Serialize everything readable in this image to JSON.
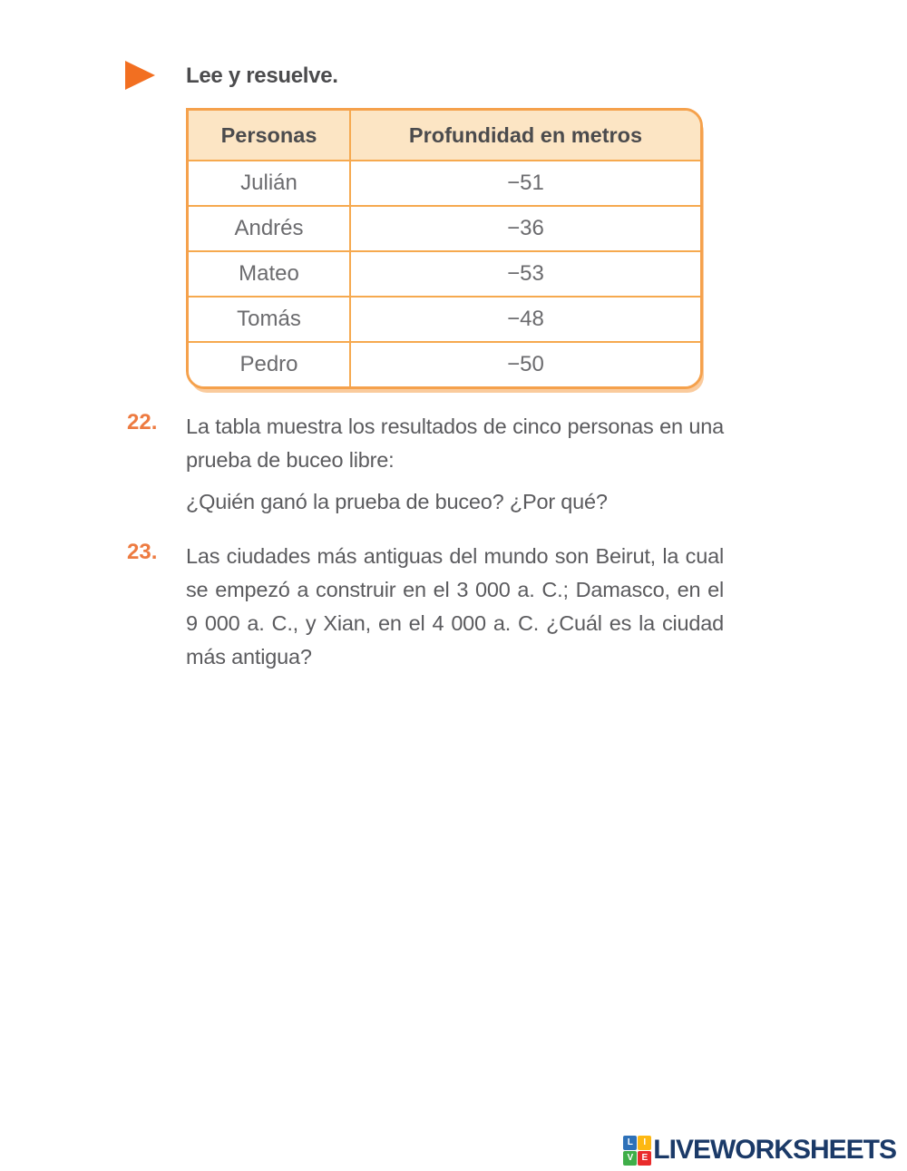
{
  "page": {
    "instruction": "Lee y resuelve."
  },
  "table": {
    "headers": [
      "Personas",
      "Profundidad en metros"
    ],
    "rows": [
      {
        "name": "Julián",
        "value": "−51"
      },
      {
        "name": "Andrés",
        "value": "−36"
      },
      {
        "name": "Mateo",
        "value": "−53"
      },
      {
        "name": "Tomás",
        "value": "−48"
      },
      {
        "name": "Pedro",
        "value": "−50"
      }
    ]
  },
  "questions": [
    {
      "number": "22.",
      "text": "La tabla muestra los resultados de cinco personas en una prueba de buceo libre:",
      "subtext": "¿Quién ganó la prueba de buceo? ¿Por qué?"
    },
    {
      "number": "23.",
      "text": "Las ciudades más antiguas del mundo son Beirut, la cual se empezó a construir en el 3 000 a. C.; Damasco, en el 9 000 a. C., y Xian, en el 4 000 a. C. ¿Cuál es la ciudad más antigua?"
    }
  ],
  "logo": {
    "text": "LIVEWORKSHEETS",
    "icon_letters": [
      "L",
      "I",
      "V",
      "E"
    ],
    "icon_colors": [
      "#2E71B8",
      "#FDB813",
      "#3FAE49",
      "#E92B2B"
    ],
    "text_color": "#1B3A68"
  },
  "colors": {
    "accent_orange": "#F26F21",
    "table_border_orange": "#F5A14C",
    "table_header_bg": "#FCE5C4",
    "question_number_orange": "#ED7B41",
    "body_text_gray": "#5B5B5E"
  }
}
